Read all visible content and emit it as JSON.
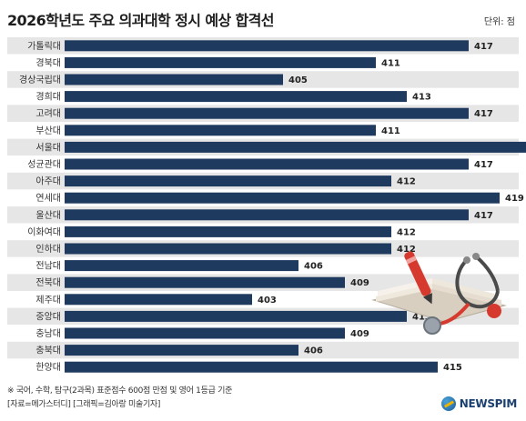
{
  "header": {
    "title": "2026학년도 주요 의과대학 정시 예상 합격선",
    "unit": "단위: 점"
  },
  "chart_data": {
    "type": "bar",
    "orientation": "horizontal",
    "categories": [
      "가톨릭대",
      "경북대",
      "경상국립대",
      "경희대",
      "고려대",
      "부산대",
      "서울대",
      "성균관대",
      "아주대",
      "연세대",
      "울산대",
      "이화여대",
      "인하대",
      "전남대",
      "전북대",
      "제주대",
      "중앙대",
      "충남대",
      "충북대",
      "한양대"
    ],
    "values": [
      417,
      411,
      405,
      413,
      417,
      411,
      422,
      417,
      412,
      419,
      417,
      412,
      412,
      406,
      409,
      403,
      413,
      409,
      406,
      415
    ],
    "bar_color": "#1f3a5f",
    "grid": false,
    "legend": "none"
  },
  "footer": {
    "note": "※ 국어, 수학, 탐구(2과목) 표준점수 600점 만점 및 영어 1등급 기준",
    "source": "[자료=메가스터디] [그래픽=김아랑 미술기자]",
    "logo_text": "NEWSPIM"
  }
}
